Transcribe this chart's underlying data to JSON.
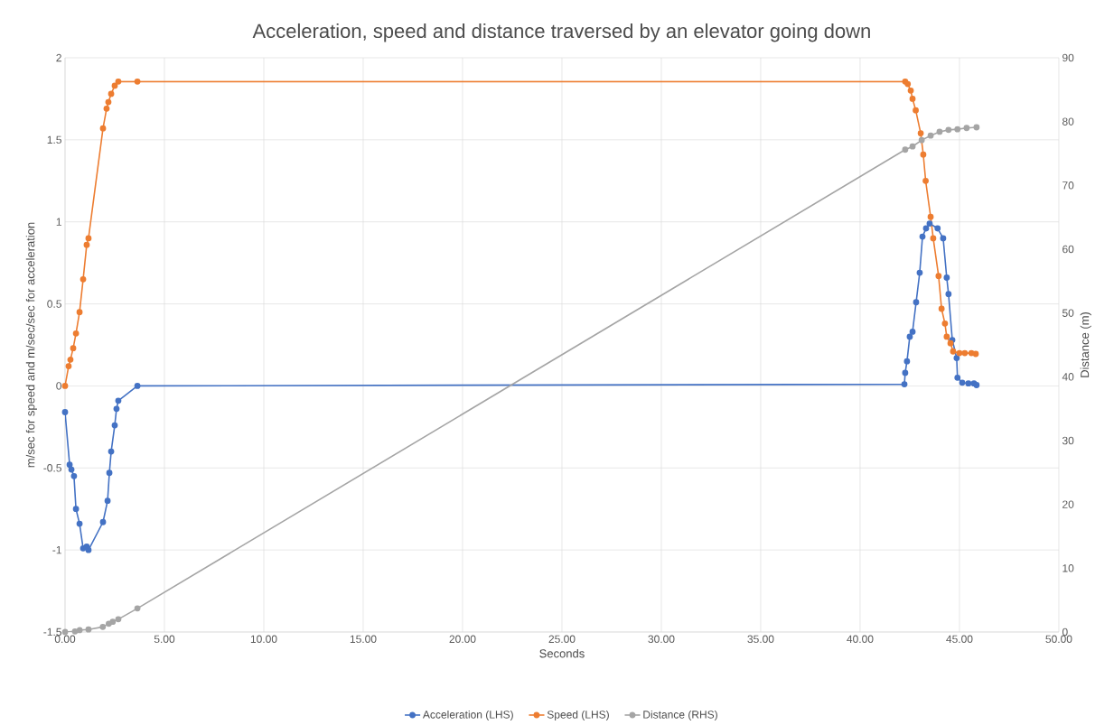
{
  "chart_data": {
    "type": "line",
    "title": "Acceleration, speed and distance traversed by an elevator going down",
    "xlabel": "Seconds",
    "ylabel": "m/sec for speed and m/sec/sec for acceleration",
    "y2label": "Distance (m)",
    "xlim": [
      0,
      50
    ],
    "xticks": [
      {
        "value": 0,
        "label": "0.00"
      },
      {
        "value": 5,
        "label": "5.00"
      },
      {
        "value": 10,
        "label": "10.00"
      },
      {
        "value": 15,
        "label": "15.00"
      },
      {
        "value": 20,
        "label": "20.00"
      },
      {
        "value": 25,
        "label": "25.00"
      },
      {
        "value": 30,
        "label": "30.00"
      },
      {
        "value": 35,
        "label": "35.00"
      },
      {
        "value": 40,
        "label": "40.00"
      },
      {
        "value": 45,
        "label": "45.00"
      },
      {
        "value": 50,
        "label": "50.00"
      }
    ],
    "ylim": [
      -1.5,
      2
    ],
    "yticks": [
      -1.5,
      -1,
      -0.5,
      0,
      0.5,
      1,
      1.5,
      2
    ],
    "y2lim": [
      0,
      90
    ],
    "y2ticks": [
      0,
      10,
      20,
      30,
      40,
      50,
      60,
      70,
      80,
      90
    ],
    "grid": true,
    "legend": "bottom",
    "marker": "circle",
    "line_style": "solid",
    "series": [
      {
        "name": "Acceleration (LHS)",
        "color": "#4472c4",
        "x": [
          0,
          0.23,
          0.32,
          0.45,
          0.55,
          0.73,
          0.91,
          1.09,
          1.18,
          1.91,
          2.14,
          2.23,
          2.32,
          2.5,
          2.59,
          2.68,
          3.64,
          42.23,
          42.27,
          42.36,
          42.5,
          42.64,
          42.82,
          43.0,
          43.14,
          43.32,
          43.5,
          43.9,
          44.18,
          44.36,
          44.45,
          44.64,
          44.86,
          44.9,
          45.14,
          45.45,
          45.73,
          45.86
        ],
        "values": [
          -0.16,
          -0.48,
          -0.51,
          -0.55,
          -0.75,
          -0.84,
          -0.99,
          -0.98,
          -1.0,
          -0.83,
          -0.7,
          -0.53,
          -0.4,
          -0.24,
          -0.14,
          -0.09,
          0.0,
          0.01,
          0.08,
          0.15,
          0.3,
          0.33,
          0.51,
          0.69,
          0.91,
          0.96,
          0.99,
          0.96,
          0.9,
          0.66,
          0.56,
          0.28,
          0.17,
          0.05,
          0.02,
          0.015,
          0.015,
          0.005
        ]
      },
      {
        "name": "Speed (LHS)",
        "color": "#ed7d31",
        "x": [
          0,
          0.18,
          0.27,
          0.41,
          0.55,
          0.73,
          0.91,
          1.09,
          1.18,
          1.91,
          2.09,
          2.18,
          2.32,
          2.5,
          2.68,
          3.64,
          42.27,
          42.4,
          42.55,
          42.64,
          42.8,
          43.05,
          43.18,
          43.3,
          43.55,
          43.68,
          43.95,
          44.1,
          44.27,
          44.36,
          44.55,
          44.68,
          45.0,
          45.27,
          45.6,
          45.82
        ],
        "values": [
          0,
          0.12,
          0.16,
          0.23,
          0.32,
          0.45,
          0.65,
          0.86,
          0.9,
          1.57,
          1.69,
          1.73,
          1.78,
          1.83,
          1.855,
          1.855,
          1.855,
          1.84,
          1.8,
          1.75,
          1.68,
          1.54,
          1.41,
          1.25,
          1.03,
          0.9,
          0.67,
          0.47,
          0.38,
          0.3,
          0.26,
          0.21,
          0.2,
          0.2,
          0.2,
          0.195
        ]
      },
      {
        "name": "Distance (RHS)",
        "color": "#a5a5a5",
        "axis": "y2",
        "x": [
          0,
          0.5,
          0.73,
          1.18,
          1.9,
          2.2,
          2.4,
          2.68,
          3.64,
          42.27,
          42.64,
          43.1,
          43.55,
          44.0,
          44.45,
          44.9,
          45.36,
          45.86
        ],
        "values": [
          0,
          0.1,
          0.3,
          0.4,
          0.8,
          1.3,
          1.6,
          2.0,
          3.7,
          75.6,
          76.1,
          77.1,
          77.8,
          78.4,
          78.7,
          78.8,
          79.0,
          79.1
        ]
      }
    ]
  }
}
